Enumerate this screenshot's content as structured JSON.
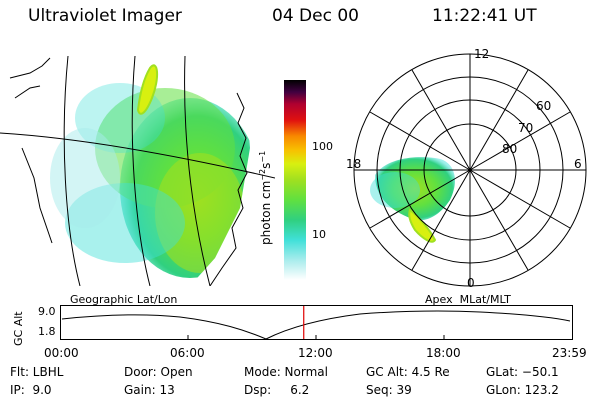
{
  "header": {
    "instrument": "Ultraviolet Imager",
    "date": "04 Dec 00",
    "time": "11:22:41 UT"
  },
  "colorbar": {
    "label": "photon cm",
    "label_sup1": "−2",
    "label_mid": "s",
    "label_sup2": "−1",
    "ticks": [
      "100",
      "10"
    ],
    "colors": [
      "#ffffff",
      "#d8f4f4",
      "#a8ecec",
      "#40e0d8",
      "#30d080",
      "#60e040",
      "#a0e020",
      "#d8f010",
      "#f8f000",
      "#f8c000",
      "#f88800",
      "#f84010",
      "#e01010",
      "#b00030",
      "#800050",
      "#400040",
      "#000000"
    ]
  },
  "polar_plot": {
    "mlt_labels": [
      "12",
      "6",
      "0",
      "18"
    ],
    "mlat_labels": [
      "60",
      "70",
      "80"
    ],
    "coordinate_system": "Apex  MLat/MLT"
  },
  "geo_map": {
    "coordinate_system": "Geographic Lat/Lon"
  },
  "altitude_plot": {
    "ylabel": "GC Alt",
    "y_ticks": [
      "9.0",
      "1.8"
    ],
    "x_ticks": [
      "00:00",
      "06:00",
      "12:00",
      "18:00",
      "23:59"
    ],
    "current_time_fraction": 0.474
  },
  "footer": {
    "filter": "Flt: LBHL",
    "door": "Door: Open",
    "mode": "Mode: Normal",
    "gc_alt": "GC Alt: 4.5 Re",
    "glat": "GLat: −50.1",
    "ip": "IP:  9.0",
    "gain": "Gain: 13",
    "dsp": "Dsp:     6.2",
    "seq": "Seq: 39",
    "glon": "GLon: 123.2"
  }
}
